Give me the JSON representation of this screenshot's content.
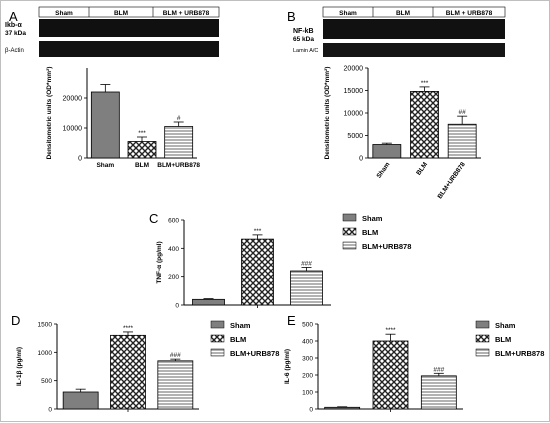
{
  "panels": {
    "A": {
      "letter": "A"
    },
    "B": {
      "letter": "B"
    },
    "C": {
      "letter": "C"
    },
    "D": {
      "letter": "D"
    },
    "E": {
      "letter": "E"
    }
  },
  "blots": {
    "A": {
      "groups": [
        "Sham",
        "BLM",
        "BLM + URB878"
      ],
      "target_label_line1": "Ikb-α",
      "target_label_line2": "37 kDa",
      "loading_label": "β-Actin"
    },
    "B": {
      "groups": [
        "Sham",
        "BLM",
        "BLM + URB878"
      ],
      "target_label_line1": "NF-kB",
      "target_label_line2": "65 kDa",
      "loading_label": "Lamin A/C"
    }
  },
  "legend": {
    "items": [
      {
        "label": "Sham",
        "pattern": "solid-gray"
      },
      {
        "label": "BLM",
        "pattern": "checker"
      },
      {
        "label": "BLM+URB878",
        "pattern": "horizontal-lines"
      }
    ]
  },
  "colors": {
    "sham": "#7f7f7f",
    "blm": "#333333",
    "urb": "#d9d9d9",
    "axis": "#000000"
  },
  "chart_data": [
    {
      "panel": "A",
      "type": "bar",
      "ylabel": "Densitometric units (OD*mm²)",
      "categories": [
        "Sham",
        "BLM",
        "BLM+URB878"
      ],
      "values": [
        22000,
        5500,
        10500
      ],
      "errors": [
        2500,
        1500,
        1500
      ],
      "annotations": [
        "",
        "***",
        "#"
      ],
      "ylim": [
        0,
        30000
      ],
      "yticks": [
        0,
        10000,
        20000
      ],
      "tick_labels": [
        "0",
        "10000",
        "20000"
      ],
      "rotated_xlabels": false
    },
    {
      "panel": "B",
      "type": "bar",
      "ylabel": "Densitometric units (OD*mm²)",
      "categories": [
        "Sham",
        "BLM",
        "BLM+URB878"
      ],
      "values": [
        3000,
        14800,
        7500
      ],
      "errors": [
        300,
        1000,
        1800
      ],
      "annotations": [
        "",
        "***",
        "##"
      ],
      "ylim": [
        0,
        20000
      ],
      "yticks": [
        0,
        5000,
        10000,
        15000,
        20000
      ],
      "tick_labels": [
        "0",
        "5000",
        "10000",
        "15000",
        "20000"
      ],
      "rotated_xlabels": true
    },
    {
      "panel": "C",
      "type": "bar",
      "ylabel": "TNF-α (pg/ml)",
      "categories": [
        "Sham",
        "BLM",
        "BLM+URB878"
      ],
      "values": [
        40,
        465,
        240
      ],
      "errors": [
        5,
        30,
        25
      ],
      "annotations": [
        "",
        "***",
        "###"
      ],
      "ylim": [
        0,
        600
      ],
      "yticks": [
        0,
        200,
        400,
        600
      ],
      "tick_labels": [
        "0",
        "200",
        "400",
        "600"
      ],
      "legend": "right"
    },
    {
      "panel": "D",
      "type": "bar",
      "ylabel": "IL-1β (pg/ml)",
      "categories": [
        "Sham",
        "BLM",
        "BLM+URB878"
      ],
      "values": [
        300,
        1300,
        850
      ],
      "errors": [
        50,
        60,
        30
      ],
      "annotations": [
        "",
        "****",
        "###"
      ],
      "ylim": [
        0,
        1500
      ],
      "yticks": [
        0,
        500,
        1000,
        1500
      ],
      "tick_labels": [
        "0",
        "500",
        "1000",
        "1500"
      ],
      "legend": "right"
    },
    {
      "panel": "E",
      "type": "bar",
      "ylabel": "IL-6 (pg/ml)",
      "categories": [
        "Sham",
        "BLM",
        "BLM+URB878"
      ],
      "values": [
        10,
        400,
        195
      ],
      "errors": [
        3,
        40,
        15
      ],
      "annotations": [
        "",
        "****",
        "###"
      ],
      "ylim": [
        0,
        500
      ],
      "yticks": [
        0,
        100,
        200,
        300,
        400,
        500
      ],
      "tick_labels": [
        "0",
        "100",
        "200",
        "300",
        "400",
        "500"
      ],
      "legend": "right"
    }
  ]
}
